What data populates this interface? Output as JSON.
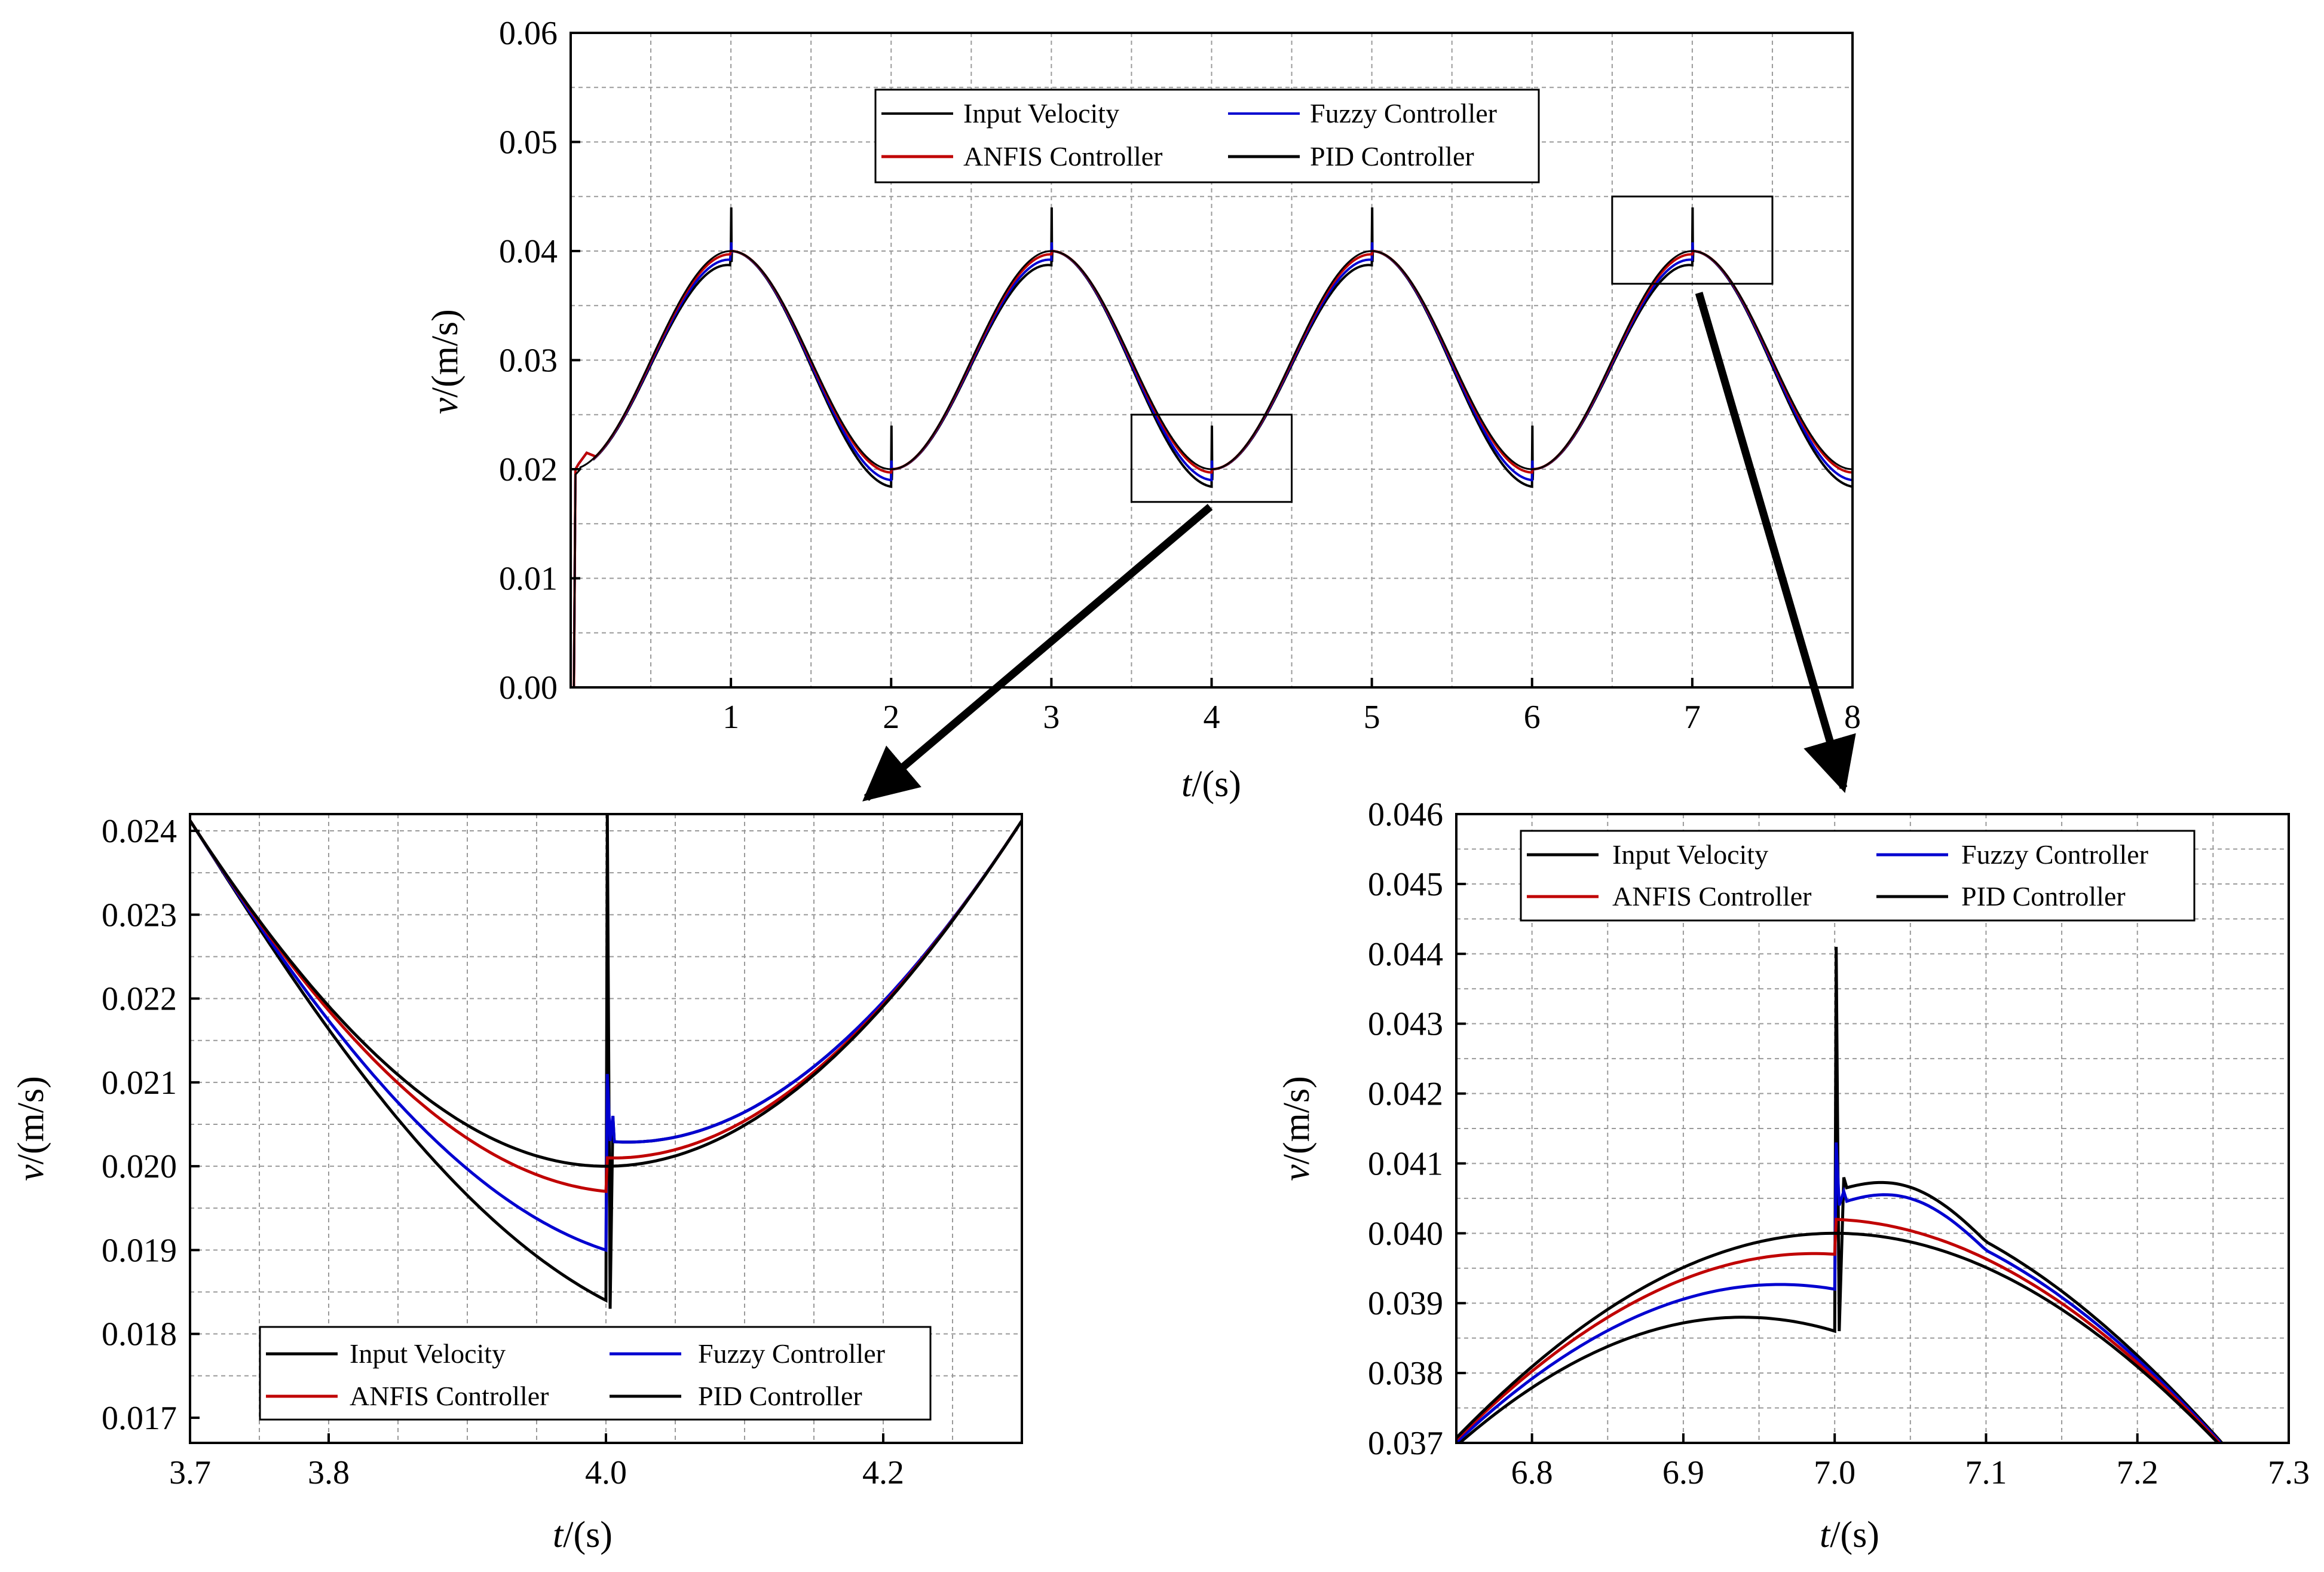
{
  "colors": {
    "input": "#000000",
    "anfis": "#c00000",
    "fuzzy": "#0000d0",
    "pid": "#000000",
    "grid": "#9a9a9a",
    "frame": "#000000",
    "arrow": "#000000"
  },
  "legend": {
    "input_velocity": "Input Velocity",
    "fuzzy_controller": "Fuzzy Controller",
    "anfis_controller": "ANFIS  Controller",
    "pid_controller": "PID Controller"
  },
  "chart_data": [
    {
      "id": "main",
      "type": "line",
      "title": "",
      "xlabel_var": "t",
      "xlabel_unit": "/(s)",
      "ylabel_var": "v",
      "ylabel_unit": "/(m/s)",
      "xlim": [
        0,
        8
      ],
      "ylim": [
        0.0,
        0.06
      ],
      "xticks": [
        1,
        2,
        3,
        4,
        5,
        6,
        7,
        8
      ],
      "xtick_labels": [
        "1",
        "2",
        "3",
        "4",
        "5",
        "6",
        "7",
        "8"
      ],
      "yticks": [
        0.0,
        0.01,
        0.02,
        0.03,
        0.04,
        0.05,
        0.06
      ],
      "ytick_labels": [
        "0.00",
        "0.01",
        "0.02",
        "0.03",
        "0.04",
        "0.05",
        "0.06"
      ],
      "grid": true,
      "legend_position": "top-center",
      "input_signal": "v = 0.03 - 0.01*cos(pi*t)",
      "zoom_boxes": [
        {
          "x": [
            3.5,
            4.5
          ],
          "y": [
            0.017,
            0.025
          ]
        },
        {
          "x": [
            6.5,
            7.5
          ],
          "y": [
            0.037,
            0.045
          ]
        }
      ],
      "series": [
        {
          "name": "Input Velocity",
          "description": "sinusoid between 0.020 and 0.040, period 2 s"
        },
        {
          "name": "ANFIS  Controller",
          "peak_lag": 0.0003,
          "trough_lag": 0.0003
        },
        {
          "name": "Fuzzy Controller",
          "peak_lag": 0.0008,
          "trough_lag": 0.001
        },
        {
          "name": "PID Controller",
          "peak_lag": 0.0013,
          "trough_lag": 0.0016,
          "spike_at_integer_t": 0.024
        }
      ]
    },
    {
      "id": "zoom-left",
      "type": "line",
      "title": "",
      "xlabel_var": "t",
      "xlabel_unit": "/(s)",
      "ylabel_var": "v",
      "ylabel_unit": "/(m/s)",
      "xlim": [
        3.7,
        4.3
      ],
      "ylim": [
        0.0167,
        0.0242
      ],
      "xticks": [
        3.7,
        3.8,
        4.0,
        4.2
      ],
      "xtick_labels": [
        "3.7",
        "3.8",
        "4.0",
        "4.2"
      ],
      "yticks": [
        0.017,
        0.018,
        0.019,
        0.02,
        0.021,
        0.022,
        0.023,
        0.024
      ],
      "ytick_labels": [
        "0.017",
        "0.018",
        "0.019",
        "0.020",
        "0.021",
        "0.022",
        "0.023",
        "0.024"
      ],
      "grid": true,
      "legend_position": "bottom-center",
      "series": [
        {
          "name": "Input Velocity",
          "min_value": 0.02,
          "at_t": 4.0
        },
        {
          "name": "ANFIS  Controller",
          "value_before_4": 0.0197,
          "value_after_4": 0.0201
        },
        {
          "name": "Fuzzy Controller",
          "value_before_4": 0.019,
          "value_after_4": 0.0203,
          "spike": 0.0211
        },
        {
          "name": "PID Controller",
          "value_before_4": 0.0184,
          "value_after_4": 0.0203,
          "spike_max": 0.0242,
          "spike_min": 0.0183
        }
      ]
    },
    {
      "id": "zoom-right",
      "type": "line",
      "title": "",
      "xlabel_var": "t",
      "xlabel_unit": "/(s)",
      "ylabel_var": "v",
      "ylabel_unit": "/(m/s)",
      "xlim": [
        6.75,
        7.3
      ],
      "ylim": [
        0.037,
        0.046
      ],
      "xticks": [
        6.8,
        6.9,
        7.0,
        7.1,
        7.2,
        7.3
      ],
      "xtick_labels": [
        "6.8",
        "6.9",
        "7.0",
        "7.1",
        "7.2",
        "7.3"
      ],
      "yticks": [
        0.037,
        0.038,
        0.039,
        0.04,
        0.041,
        0.042,
        0.043,
        0.044,
        0.045,
        0.046
      ],
      "ytick_labels": [
        "0.037",
        "0.038",
        "0.039",
        "0.040",
        "0.041",
        "0.042",
        "0.043",
        "0.044",
        "0.045",
        "0.046"
      ],
      "grid": true,
      "legend_position": "top-center",
      "series": [
        {
          "name": "Input Velocity",
          "max_value": 0.04,
          "at_t": 7.0
        },
        {
          "name": "ANFIS  Controller",
          "value_before_7": 0.0397,
          "value_after_7": 0.0402
        },
        {
          "name": "Fuzzy Controller",
          "value_before_7": 0.0392,
          "value_after_7": 0.0404,
          "spike": 0.0413
        },
        {
          "name": "PID Controller",
          "value_before_7": 0.0386,
          "value_after_7": 0.0406,
          "spike_max": 0.0441,
          "spike_min": 0.0386
        }
      ]
    }
  ]
}
